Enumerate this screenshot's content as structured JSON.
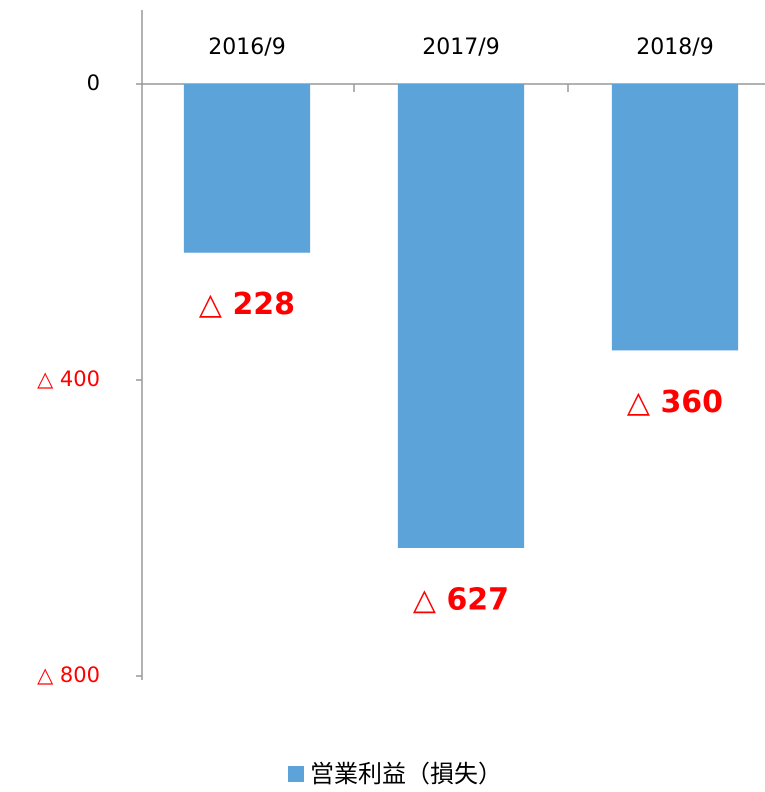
{
  "chart_data": {
    "type": "bar",
    "categories": [
      "2016/9",
      "2017/9",
      "2018/9"
    ],
    "series": [
      {
        "name": "営業利益（損失）",
        "color": "#5ba3d9",
        "values": [
          -228,
          -627,
          -360
        ],
        "value_labels": [
          "△ 228",
          "△ 627",
          "△ 360"
        ]
      }
    ],
    "ylim": [
      -800,
      100
    ],
    "yticks": [
      0,
      {
        "value": -400,
        "label": "△ 400"
      },
      {
        "value": -800,
        "label": "△ 800"
      }
    ],
    "grid": false,
    "legend": "bottom"
  }
}
